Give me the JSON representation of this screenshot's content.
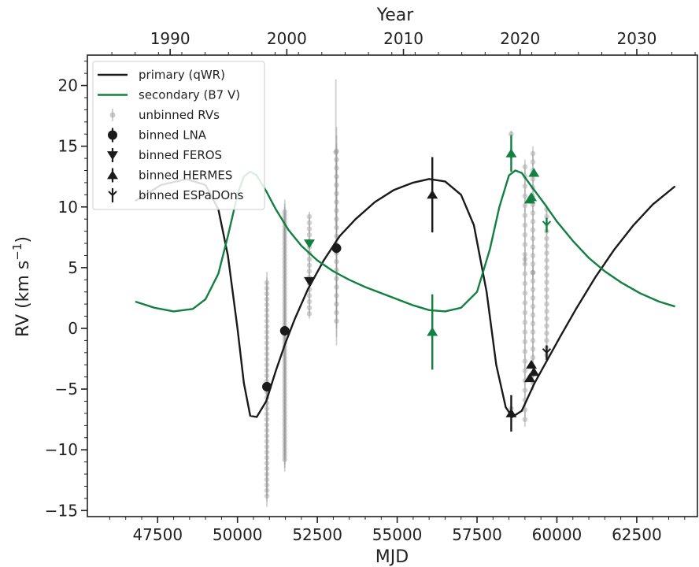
{
  "chart_data": {
    "type": "scatter",
    "x_label": "MJD",
    "y_label": "RV (km s",
    "y_label_sup": "−1",
    "y_label_close": ")",
    "x2_label": "Year",
    "xlim": [
      45300,
      64400
    ],
    "ylim": [
      -15.5,
      22.5
    ],
    "x_ticks": [
      47500,
      50000,
      52500,
      55000,
      57500,
      60000,
      62500
    ],
    "x_tick_labels": [
      "47500",
      "50000",
      "52500",
      "55000",
      "57500",
      "60000",
      "62500"
    ],
    "y_ticks": [
      -15,
      -10,
      -5,
      0,
      5,
      10,
      15,
      20
    ],
    "y_tick_labels": [
      "−15",
      "−10",
      "−5",
      "0",
      "5",
      "10",
      "15",
      "20"
    ],
    "year_ticks": [
      1990,
      2000,
      2010,
      2020,
      2030
    ],
    "year_tick_labels": [
      "1990",
      "2000",
      "2010",
      "2020",
      "2030"
    ],
    "grid": false,
    "legend_position": "top-left",
    "legend": [
      {
        "label": "primary (qWR)",
        "kind": "line",
        "color": "#1a1a1a"
      },
      {
        "label": "secondary (B7 V)",
        "kind": "line",
        "color": "#118040"
      },
      {
        "label": "unbinned RVs",
        "kind": "gray-point",
        "color": "#9a9a9a"
      },
      {
        "label": "binned LNA",
        "kind": "circle",
        "color": "#1a1a1a"
      },
      {
        "label": "binned FEROS",
        "kind": "tri-down",
        "color": "#1a1a1a"
      },
      {
        "label": "binned HERMES",
        "kind": "tri-up",
        "color": "#1a1a1a"
      },
      {
        "label": "binned ESPaDOns",
        "kind": "tri-line",
        "color": "#1a1a1a"
      }
    ],
    "colors": {
      "primary": "#1a1a1a",
      "secondary": "#118040",
      "unbinned": "#9a9a9a"
    },
    "series": [
      {
        "name": "primary (qWR)",
        "type": "line",
        "x": [
          46800,
          47600,
          48400,
          49000,
          49400,
          49700,
          50000,
          50200,
          50400,
          50600,
          50900,
          51200,
          51500,
          51800,
          52200,
          52700,
          53200,
          53700,
          54300,
          54900,
          55500,
          56000,
          56500,
          57000,
          57400,
          57800,
          58100,
          58400,
          58600,
          58900,
          59300,
          59700,
          60100,
          60600,
          61200,
          61800,
          62400,
          63000,
          63700
        ],
        "y": [
          10.5,
          11.8,
          12.3,
          11.8,
          9.8,
          6.0,
          0.0,
          -4.5,
          -7.2,
          -7.3,
          -6.0,
          -3.5,
          -1.2,
          0.8,
          3.2,
          5.6,
          7.6,
          9.0,
          10.4,
          11.4,
          12.0,
          12.3,
          12.1,
          11.0,
          8.5,
          3.0,
          -3.0,
          -6.5,
          -7.3,
          -6.8,
          -4.5,
          -2.6,
          -0.7,
          1.6,
          4.2,
          6.5,
          8.5,
          10.2,
          11.7
        ]
      },
      {
        "name": "secondary (B7 V)",
        "type": "line",
        "x": [
          46800,
          47400,
          48000,
          48600,
          49000,
          49400,
          49700,
          50000,
          50200,
          50400,
          50600,
          50900,
          51200,
          51600,
          52000,
          52500,
          53000,
          53500,
          54000,
          54500,
          55000,
          55500,
          56000,
          56500,
          57000,
          57500,
          57900,
          58200,
          58500,
          58700,
          58900,
          59200,
          59600,
          60000,
          60500,
          61000,
          61500,
          62000,
          62600,
          63200,
          63700
        ],
        "y": [
          2.2,
          1.7,
          1.4,
          1.6,
          2.4,
          4.5,
          7.6,
          11.0,
          12.5,
          12.9,
          12.6,
          11.3,
          9.8,
          8.1,
          6.8,
          5.6,
          4.7,
          4.0,
          3.4,
          2.9,
          2.4,
          1.9,
          1.5,
          1.4,
          1.7,
          3.0,
          6.5,
          10.0,
          12.6,
          13.0,
          12.8,
          11.7,
          10.3,
          8.8,
          7.2,
          5.8,
          4.7,
          3.8,
          2.9,
          2.2,
          1.8
        ]
      },
      {
        "name": "unbinned RVs",
        "type": "scatter",
        "groups": [
          {
            "x": 50920,
            "ymin": -13.8,
            "ymax": 3.8,
            "step": 0.45,
            "err": 0.9
          },
          {
            "x": 51480,
            "ymin": -10.8,
            "ymax": 9.8,
            "step": 0.3,
            "err": 1.0
          },
          {
            "x": 52250,
            "ymin": 1.2,
            "ymax": 9.5,
            "step": 0.5,
            "err": 0.4
          },
          {
            "x": 53100,
            "ymin": 0.6,
            "ymax": 14.8,
            "step": 0.7,
            "err": 2.0
          },
          {
            "x": 59000,
            "ymin": -7.5,
            "ymax": 13.8,
            "step": 0.8,
            "err": 0.6
          },
          {
            "x": 59250,
            "ymin": -4.5,
            "ymax": 15.0,
            "step": 0.7,
            "err": 0.6
          },
          {
            "x": 59680,
            "ymin": -2.2,
            "ymax": 10.2,
            "step": 0.6,
            "err": 0.4
          }
        ],
        "points": [
          {
            "x": 53080,
            "y": 14.5,
            "err": 6.0
          },
          {
            "x": 58570,
            "y": 16.0,
            "err": 0.3
          },
          {
            "x": 58570,
            "y": 14.2,
            "err": 0.3
          },
          {
            "x": 59000,
            "y": 5.7,
            "err": 0.5
          },
          {
            "x": 59250,
            "y": 4.6,
            "err": 0.5
          },
          {
            "x": 58570,
            "y": -6.6,
            "err": 0.3
          }
        ]
      },
      {
        "name": "binned LNA",
        "type": "circle",
        "color": "#1a1a1a",
        "points": [
          {
            "x": 50920,
            "y": -4.8,
            "err": 0.4
          },
          {
            "x": 51480,
            "y": -0.2,
            "err": 0.4
          },
          {
            "x": 53100,
            "y": 6.6,
            "err": 0.4
          }
        ]
      },
      {
        "name": "binned FEROS",
        "type": "tri-down",
        "points": [
          {
            "x": 52250,
            "y": 3.9,
            "err": 0.3,
            "color": "#1a1a1a"
          },
          {
            "x": 52250,
            "y": 7.0,
            "err": 0.3,
            "color": "#118040"
          }
        ]
      },
      {
        "name": "binned HERMES",
        "type": "tri-up",
        "points": [
          {
            "x": 56100,
            "y": 11.0,
            "err": 3.1,
            "color": "#1a1a1a"
          },
          {
            "x": 56100,
            "y": -0.3,
            "err": 3.1,
            "color": "#118040"
          },
          {
            "x": 58570,
            "y": -7.0,
            "err": 1.5,
            "color": "#1a1a1a"
          },
          {
            "x": 58570,
            "y": 14.4,
            "err": 1.5,
            "color": "#118040"
          },
          {
            "x": 59150,
            "y": -4.1,
            "err": 0.3,
            "color": "#1a1a1a"
          },
          {
            "x": 59200,
            "y": -3.0,
            "err": 0.3,
            "color": "#1a1a1a"
          },
          {
            "x": 59280,
            "y": -3.6,
            "err": 0.3,
            "color": "#1a1a1a"
          },
          {
            "x": 59150,
            "y": 10.6,
            "err": 0.3,
            "color": "#118040"
          },
          {
            "x": 59200,
            "y": 10.8,
            "err": 0.3,
            "color": "#118040"
          },
          {
            "x": 59280,
            "y": 12.8,
            "err": 0.3,
            "color": "#118040"
          }
        ]
      },
      {
        "name": "binned ESPaDOns",
        "type": "tri-line",
        "points": [
          {
            "x": 59680,
            "y": -2.0,
            "err": 0.6,
            "color": "#1a1a1a"
          },
          {
            "x": 59680,
            "y": 8.5,
            "err": 0.6,
            "color": "#118040"
          }
        ]
      }
    ]
  }
}
